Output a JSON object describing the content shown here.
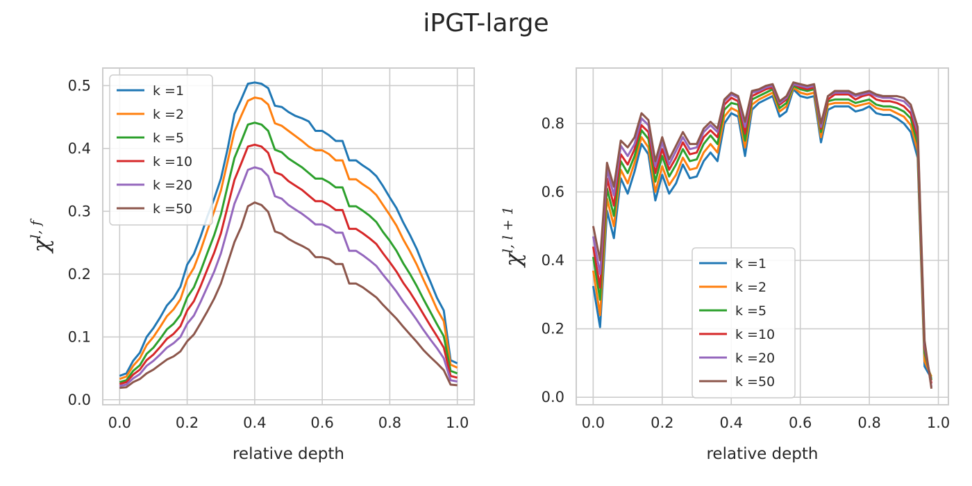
{
  "figure": {
    "title": "iPGT-large"
  },
  "chart_data": [
    {
      "type": "line",
      "xlabel": "relative depth",
      "ylabel_base": "χ",
      "ylabel_sup": "l, f",
      "xlim": [
        -0.05,
        1.05
      ],
      "ylim": [
        -0.008,
        0.528
      ],
      "xticks": [
        0.0,
        0.2,
        0.4,
        0.6,
        0.8,
        1.0
      ],
      "xtick_labels": [
        "0.0",
        "0.2",
        "0.4",
        "0.6",
        "0.8",
        "1.0"
      ],
      "yticks": [
        0.0,
        0.1,
        0.2,
        0.3,
        0.4,
        0.5
      ],
      "ytick_labels": [
        "0.0",
        "0.1",
        "0.2",
        "0.3",
        "0.4",
        "0.5"
      ],
      "grid": true,
      "legend_position": "upper-left",
      "x": [
        0.0,
        0.02,
        0.04,
        0.06,
        0.08,
        0.1,
        0.12,
        0.14,
        0.16,
        0.18,
        0.2,
        0.22,
        0.24,
        0.26,
        0.28,
        0.3,
        0.32,
        0.34,
        0.36,
        0.38,
        0.4,
        0.42,
        0.44,
        0.46,
        0.48,
        0.5,
        0.52,
        0.54,
        0.56,
        0.58,
        0.6,
        0.62,
        0.64,
        0.66,
        0.68,
        0.7,
        0.72,
        0.74,
        0.76,
        0.78,
        0.8,
        0.82,
        0.84,
        0.86,
        0.88,
        0.9,
        0.92,
        0.94,
        0.96,
        0.98,
        1.0
      ],
      "series": [
        {
          "name": "k =1",
          "color": "#1f77b4",
          "values": [
            0.038,
            0.042,
            0.062,
            0.075,
            0.1,
            0.114,
            0.131,
            0.15,
            0.162,
            0.18,
            0.215,
            0.232,
            0.26,
            0.292,
            0.32,
            0.352,
            0.4,
            0.455,
            0.478,
            0.503,
            0.505,
            0.503,
            0.496,
            0.468,
            0.466,
            0.458,
            0.452,
            0.448,
            0.443,
            0.428,
            0.428,
            0.421,
            0.412,
            0.412,
            0.381,
            0.381,
            0.373,
            0.366,
            0.356,
            0.34,
            0.322,
            0.305,
            0.282,
            0.262,
            0.24,
            0.213,
            0.188,
            0.162,
            0.142,
            0.063,
            0.058
          ]
        },
        {
          "name": "k =2",
          "color": "#ff7f0e",
          "values": [
            0.033,
            0.037,
            0.054,
            0.066,
            0.087,
            0.1,
            0.116,
            0.133,
            0.144,
            0.16,
            0.192,
            0.21,
            0.238,
            0.27,
            0.3,
            0.333,
            0.38,
            0.427,
            0.452,
            0.476,
            0.481,
            0.479,
            0.47,
            0.44,
            0.436,
            0.428,
            0.42,
            0.412,
            0.403,
            0.397,
            0.397,
            0.391,
            0.381,
            0.381,
            0.351,
            0.351,
            0.343,
            0.336,
            0.326,
            0.31,
            0.294,
            0.277,
            0.255,
            0.236,
            0.215,
            0.191,
            0.168,
            0.144,
            0.125,
            0.056,
            0.051
          ]
        },
        {
          "name": "k =5",
          "color": "#2ca02c",
          "values": [
            0.028,
            0.031,
            0.046,
            0.055,
            0.073,
            0.083,
            0.097,
            0.112,
            0.121,
            0.135,
            0.163,
            0.179,
            0.205,
            0.234,
            0.262,
            0.295,
            0.341,
            0.385,
            0.411,
            0.438,
            0.441,
            0.438,
            0.428,
            0.398,
            0.394,
            0.384,
            0.377,
            0.37,
            0.361,
            0.352,
            0.352,
            0.346,
            0.338,
            0.338,
            0.308,
            0.308,
            0.301,
            0.293,
            0.283,
            0.267,
            0.253,
            0.237,
            0.217,
            0.2,
            0.181,
            0.16,
            0.14,
            0.12,
            0.101,
            0.046,
            0.042
          ]
        },
        {
          "name": "k =10",
          "color": "#d62728",
          "values": [
            0.025,
            0.028,
            0.04,
            0.048,
            0.063,
            0.072,
            0.084,
            0.097,
            0.105,
            0.117,
            0.142,
            0.157,
            0.181,
            0.208,
            0.234,
            0.265,
            0.308,
            0.35,
            0.376,
            0.403,
            0.406,
            0.403,
            0.393,
            0.362,
            0.358,
            0.348,
            0.341,
            0.334,
            0.325,
            0.316,
            0.316,
            0.31,
            0.302,
            0.302,
            0.272,
            0.272,
            0.265,
            0.257,
            0.248,
            0.233,
            0.219,
            0.204,
            0.186,
            0.171,
            0.154,
            0.136,
            0.118,
            0.101,
            0.083,
            0.038,
            0.035
          ]
        },
        {
          "name": "k =20",
          "color": "#9467bd",
          "values": [
            0.022,
            0.024,
            0.034,
            0.041,
            0.054,
            0.062,
            0.072,
            0.083,
            0.09,
            0.1,
            0.121,
            0.134,
            0.156,
            0.18,
            0.204,
            0.233,
            0.272,
            0.312,
            0.338,
            0.366,
            0.37,
            0.367,
            0.356,
            0.324,
            0.32,
            0.31,
            0.303,
            0.296,
            0.288,
            0.279,
            0.279,
            0.274,
            0.266,
            0.266,
            0.237,
            0.237,
            0.23,
            0.222,
            0.213,
            0.199,
            0.186,
            0.172,
            0.156,
            0.142,
            0.127,
            0.111,
            0.096,
            0.082,
            0.066,
            0.031,
            0.029
          ]
        },
        {
          "name": "k =50",
          "color": "#8c564b",
          "values": [
            0.019,
            0.02,
            0.028,
            0.033,
            0.042,
            0.048,
            0.056,
            0.064,
            0.069,
            0.077,
            0.093,
            0.104,
            0.122,
            0.141,
            0.161,
            0.185,
            0.218,
            0.251,
            0.275,
            0.308,
            0.314,
            0.31,
            0.299,
            0.268,
            0.264,
            0.256,
            0.25,
            0.245,
            0.239,
            0.227,
            0.227,
            0.224,
            0.216,
            0.216,
            0.185,
            0.185,
            0.179,
            0.171,
            0.163,
            0.151,
            0.14,
            0.129,
            0.116,
            0.104,
            0.092,
            0.079,
            0.068,
            0.058,
            0.047,
            0.024,
            0.023
          ]
        }
      ]
    },
    {
      "type": "line",
      "xlabel": "relative depth",
      "ylabel_base": "χ",
      "ylabel_sup": "l, l + 1",
      "xlim": [
        -0.049,
        1.029
      ],
      "ylim": [
        -0.022,
        0.962
      ],
      "xticks": [
        0.0,
        0.2,
        0.4,
        0.6,
        0.8,
        1.0
      ],
      "xtick_labels": [
        "0.0",
        "0.2",
        "0.4",
        "0.6",
        "0.8",
        "1.0"
      ],
      "yticks": [
        0.0,
        0.2,
        0.4,
        0.6,
        0.8
      ],
      "ytick_labels": [
        "0.0",
        "0.2",
        "0.4",
        "0.6",
        "0.8"
      ],
      "grid": true,
      "legend_position": "lower-center",
      "x": [
        0.0,
        0.02,
        0.04,
        0.06,
        0.08,
        0.1,
        0.12,
        0.14,
        0.16,
        0.18,
        0.2,
        0.22,
        0.24,
        0.26,
        0.28,
        0.3,
        0.32,
        0.34,
        0.36,
        0.38,
        0.4,
        0.42,
        0.44,
        0.46,
        0.48,
        0.5,
        0.52,
        0.54,
        0.56,
        0.58,
        0.6,
        0.62,
        0.64,
        0.66,
        0.68,
        0.7,
        0.72,
        0.74,
        0.76,
        0.78,
        0.8,
        0.82,
        0.84,
        0.86,
        0.88,
        0.9,
        0.92,
        0.94,
        0.96,
        0.98
      ],
      "series": [
        {
          "name": "k =1",
          "color": "#1f77b4",
          "values": [
            0.325,
            0.205,
            0.545,
            0.465,
            0.64,
            0.595,
            0.66,
            0.74,
            0.71,
            0.575,
            0.65,
            0.595,
            0.625,
            0.68,
            0.64,
            0.645,
            0.69,
            0.715,
            0.69,
            0.8,
            0.83,
            0.82,
            0.705,
            0.84,
            0.86,
            0.87,
            0.88,
            0.82,
            0.835,
            0.9,
            0.88,
            0.875,
            0.88,
            0.745,
            0.84,
            0.85,
            0.85,
            0.85,
            0.835,
            0.84,
            0.85,
            0.83,
            0.825,
            0.825,
            0.815,
            0.8,
            0.775,
            0.7,
            0.09,
            0.055
          ]
        },
        {
          "name": "k =2",
          "color": "#ff7f0e",
          "values": [
            0.37,
            0.24,
            0.58,
            0.5,
            0.665,
            0.625,
            0.685,
            0.76,
            0.73,
            0.6,
            0.675,
            0.62,
            0.65,
            0.7,
            0.665,
            0.67,
            0.715,
            0.74,
            0.715,
            0.82,
            0.845,
            0.835,
            0.73,
            0.855,
            0.87,
            0.88,
            0.89,
            0.835,
            0.85,
            0.905,
            0.89,
            0.885,
            0.89,
            0.76,
            0.855,
            0.86,
            0.86,
            0.86,
            0.85,
            0.855,
            0.86,
            0.845,
            0.84,
            0.84,
            0.83,
            0.82,
            0.795,
            0.72,
            0.105,
            0.06
          ]
        },
        {
          "name": "k =5",
          "color": "#2ca02c",
          "values": [
            0.41,
            0.285,
            0.61,
            0.53,
            0.69,
            0.655,
            0.705,
            0.78,
            0.755,
            0.63,
            0.705,
            0.645,
            0.68,
            0.725,
            0.69,
            0.695,
            0.74,
            0.765,
            0.74,
            0.84,
            0.86,
            0.855,
            0.75,
            0.87,
            0.88,
            0.89,
            0.9,
            0.845,
            0.86,
            0.91,
            0.9,
            0.895,
            0.9,
            0.775,
            0.865,
            0.87,
            0.87,
            0.87,
            0.86,
            0.865,
            0.87,
            0.855,
            0.85,
            0.85,
            0.845,
            0.835,
            0.815,
            0.74,
            0.13,
            0.05
          ]
        },
        {
          "name": "k =10",
          "color": "#d62728",
          "values": [
            0.44,
            0.32,
            0.64,
            0.56,
            0.71,
            0.68,
            0.725,
            0.795,
            0.775,
            0.655,
            0.725,
            0.665,
            0.7,
            0.745,
            0.71,
            0.715,
            0.76,
            0.78,
            0.76,
            0.855,
            0.875,
            0.865,
            0.77,
            0.88,
            0.89,
            0.9,
            0.905,
            0.855,
            0.87,
            0.915,
            0.905,
            0.9,
            0.905,
            0.785,
            0.87,
            0.885,
            0.885,
            0.885,
            0.87,
            0.88,
            0.885,
            0.87,
            0.865,
            0.865,
            0.86,
            0.85,
            0.83,
            0.76,
            0.145,
            0.04
          ]
        },
        {
          "name": "k =20",
          "color": "#9467bd",
          "values": [
            0.47,
            0.36,
            0.665,
            0.59,
            0.735,
            0.705,
            0.74,
            0.815,
            0.795,
            0.675,
            0.745,
            0.68,
            0.72,
            0.76,
            0.725,
            0.73,
            0.775,
            0.795,
            0.775,
            0.865,
            0.885,
            0.875,
            0.79,
            0.89,
            0.895,
            0.905,
            0.91,
            0.86,
            0.875,
            0.915,
            0.91,
            0.905,
            0.91,
            0.79,
            0.88,
            0.89,
            0.89,
            0.89,
            0.88,
            0.885,
            0.89,
            0.88,
            0.875,
            0.875,
            0.87,
            0.865,
            0.845,
            0.775,
            0.155,
            0.03
          ]
        },
        {
          "name": "k =50",
          "color": "#8c564b",
          "values": [
            0.5,
            0.4,
            0.685,
            0.615,
            0.75,
            0.73,
            0.76,
            0.83,
            0.81,
            0.69,
            0.76,
            0.695,
            0.735,
            0.775,
            0.74,
            0.74,
            0.785,
            0.805,
            0.785,
            0.87,
            0.89,
            0.88,
            0.805,
            0.895,
            0.9,
            0.91,
            0.915,
            0.865,
            0.88,
            0.92,
            0.915,
            0.91,
            0.915,
            0.8,
            0.88,
            0.895,
            0.895,
            0.895,
            0.885,
            0.89,
            0.895,
            0.885,
            0.88,
            0.88,
            0.88,
            0.875,
            0.855,
            0.79,
            0.165,
            0.025
          ]
        }
      ]
    }
  ]
}
